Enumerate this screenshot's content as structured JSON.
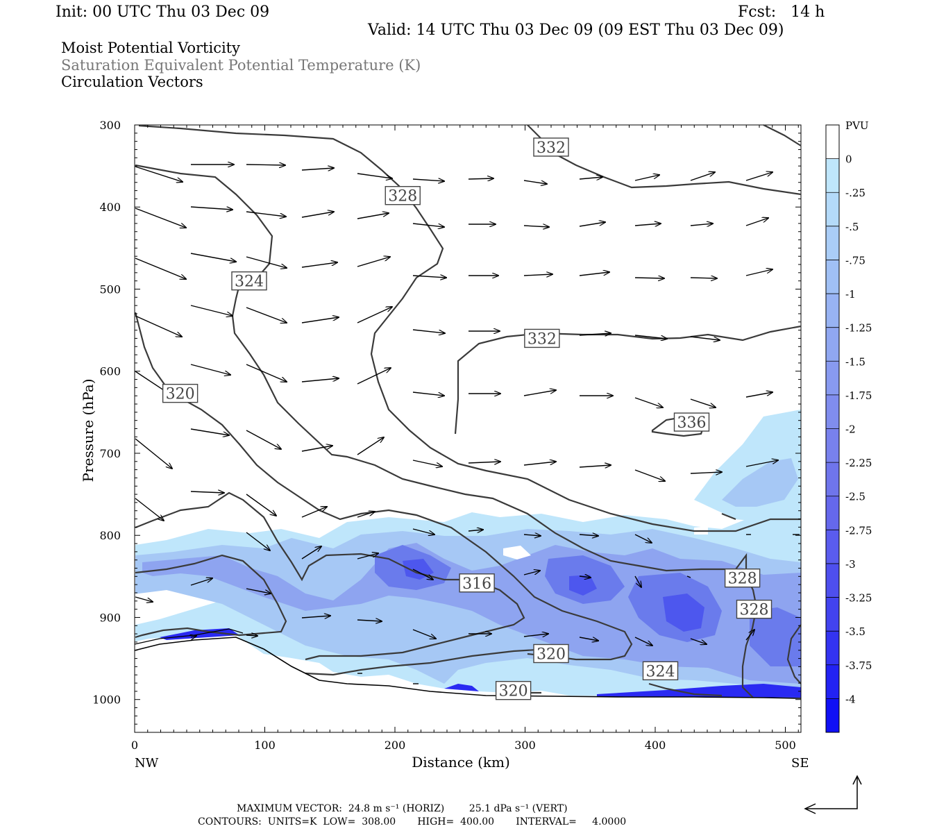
{
  "header": {
    "init": "Init: 00 UTC Thu 03 Dec 09",
    "fcst": "Fcst:   14 h",
    "valid": "Valid: 14 UTC Thu 03 Dec 09 (09 EST Thu 03 Dec 09)"
  },
  "fields": {
    "line1": "Moist Potential Vorticity",
    "line2": "Saturation Equivalent Potential Temperature (K)",
    "line3": "Circulation Vectors"
  },
  "footer": {
    "max_vector": "MAXIMUM VECTOR:  24.8 m s⁻¹ (HORIZ)        25.1 dPa s⁻¹ (VERT)",
    "contours": "CONTOURS:  UNITS=K  LOW=  308.00       HIGH=  400.00       INTERVAL=     4.0000"
  },
  "colors": {
    "fill_025": "#bfe6fb",
    "fill_1": "#a6c8f5",
    "fill_175": "#8ea4f0",
    "fill_25": "#6a7bec",
    "fill_325": "#4d57ee",
    "fill_4": "#1010f5",
    "contour": "#3a3a3a"
  },
  "chart_data": {
    "type": "cross-section",
    "xlabel": "Distance (km)",
    "ylabel": "Pressure (hPa)",
    "xlim": [
      0,
      512
    ],
    "ylim": [
      1040,
      300
    ],
    "x_ticks": [
      0,
      100,
      200,
      300,
      400,
      500
    ],
    "y_ticks": [
      300,
      400,
      500,
      600,
      700,
      800,
      900,
      1000
    ],
    "x_end_labels": {
      "left": "NW",
      "right": "SE"
    },
    "colorbar": {
      "unit": "PVU",
      "levels": [
        "0",
        "-.25",
        "-.5",
        "-.75",
        "-1",
        "-1.25",
        "-1.5",
        "-1.75",
        "-2",
        "-2.25",
        "-2.5",
        "-2.75",
        "-3",
        "-3.25",
        "-3.5",
        "-3.75",
        "-4"
      ],
      "colors": [
        "#ffffff",
        "#bfe6fb",
        "#b4daf9",
        "#aacdf7",
        "#a0c0f5",
        "#98b3f3",
        "#90a7f1",
        "#889af0",
        "#808dee",
        "#7881ed",
        "#6f75ec",
        "#6568ec",
        "#5a5cee",
        "#4e4fee",
        "#4243ef",
        "#3333f1",
        "#2222f3",
        "#1010f5"
      ]
    },
    "contour_labels": [
      {
        "text": "332",
        "x": 320,
        "p": 327
      },
      {
        "text": "328",
        "x": 206,
        "p": 386
      },
      {
        "text": "324",
        "x": 88,
        "p": 490
      },
      {
        "text": "332",
        "x": 313,
        "p": 560
      },
      {
        "text": "320",
        "x": 35,
        "p": 627
      },
      {
        "text": "336",
        "x": 428,
        "p": 662
      },
      {
        "text": "316",
        "x": 263,
        "p": 858
      },
      {
        "text": "328",
        "x": 467,
        "p": 852
      },
      {
        "text": "328",
        "x": 476,
        "p": 890
      },
      {
        "text": "320",
        "x": 320,
        "p": 944
      },
      {
        "text": "324",
        "x": 404,
        "p": 965
      },
      {
        "text": "320",
        "x": 291,
        "p": 989
      }
    ],
    "vector_note": "circulation vectors (horizontal, vertical)"
  }
}
